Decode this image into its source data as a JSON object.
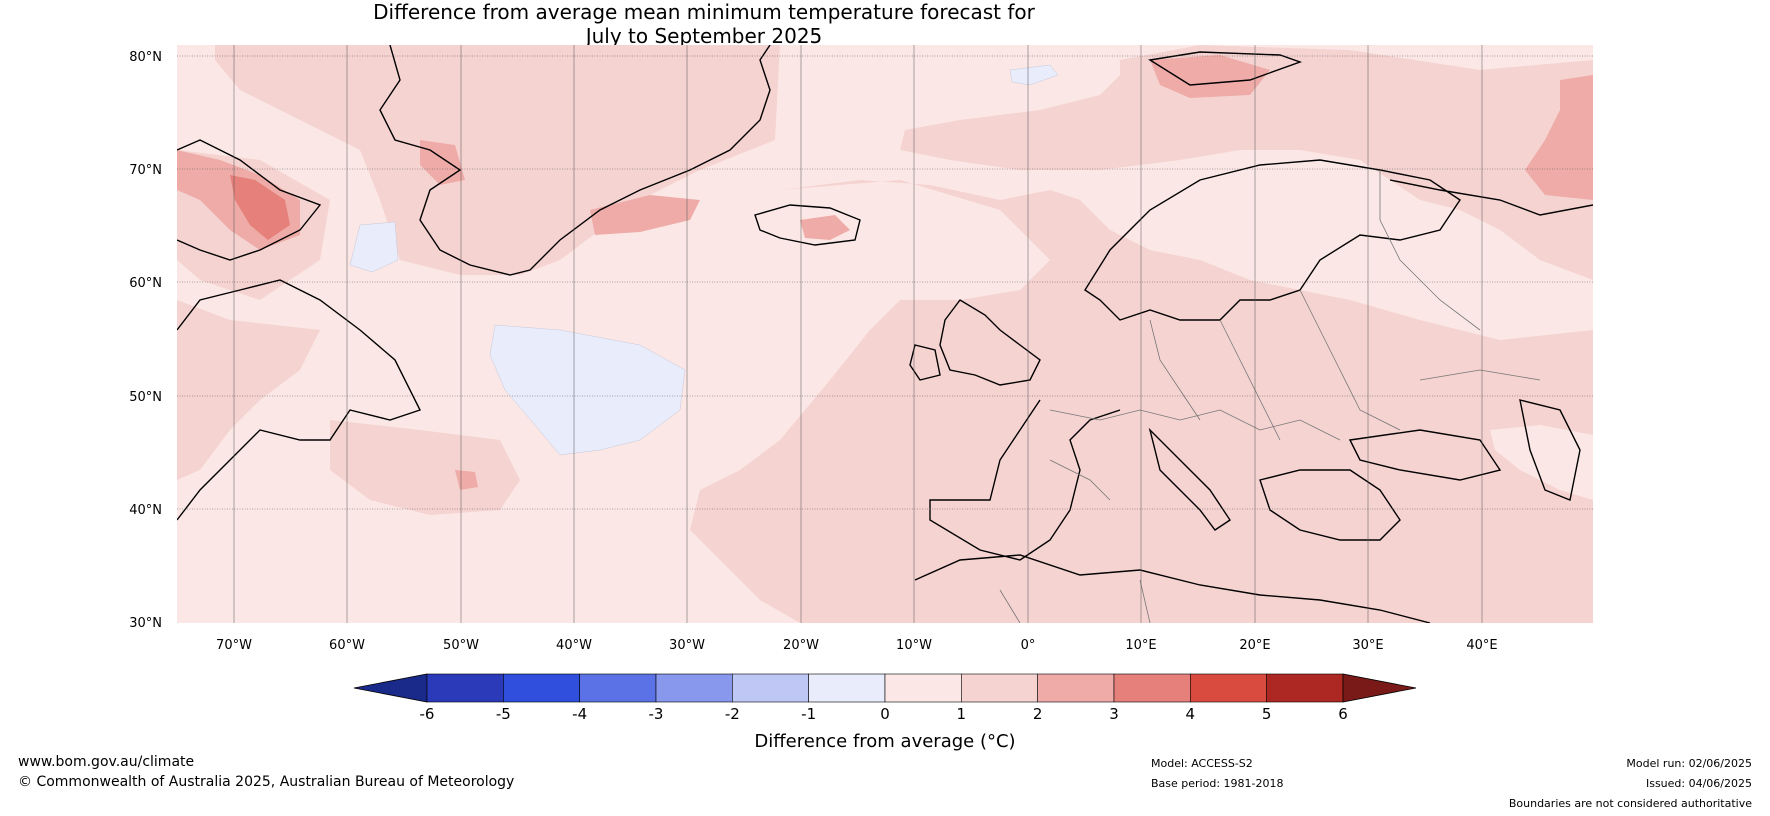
{
  "title_line1": "Difference from average mean minimum temperature forecast for",
  "title_line2": "July to September 2025",
  "lat_labels": [
    "80°N",
    "70°N",
    "60°N",
    "50°N",
    "40°N",
    "30°N"
  ],
  "lon_labels": [
    "70°W",
    "60°W",
    "50°W",
    "40°W",
    "30°W",
    "20°W",
    "10°W",
    "0°",
    "10°E",
    "20°E",
    "30°E",
    "40°E"
  ],
  "colorbar": {
    "label": "Difference from average (°C)",
    "ticks": [
      "-6",
      "-5",
      "-4",
      "-3",
      "-2",
      "-1",
      "0",
      "1",
      "2",
      "3",
      "4",
      "5",
      "6"
    ],
    "colors": [
      "#1a2a8a",
      "#2a3ab8",
      "#2f4fdc",
      "#5a72e6",
      "#8898ec",
      "#bfc8f4",
      "#e8ecfb",
      "#fbe8e6",
      "#f5d3d1",
      "#eeaba7",
      "#e6807a",
      "#d94a3f",
      "#ae2823",
      "#7a1a18"
    ]
  },
  "footer": {
    "website": "www.bom.gov.au/climate",
    "copyright": "© Commonwealth of Australia 2025, Australian Bureau of Meteorology",
    "model": "Model: ACCESS-S2",
    "base_period": "Base period: 1981-2018",
    "model_run": "Model run: 02/06/2025",
    "issued": "Issued: 04/06/2025",
    "disclaimer": "Boundaries are not considered authoritative"
  }
}
